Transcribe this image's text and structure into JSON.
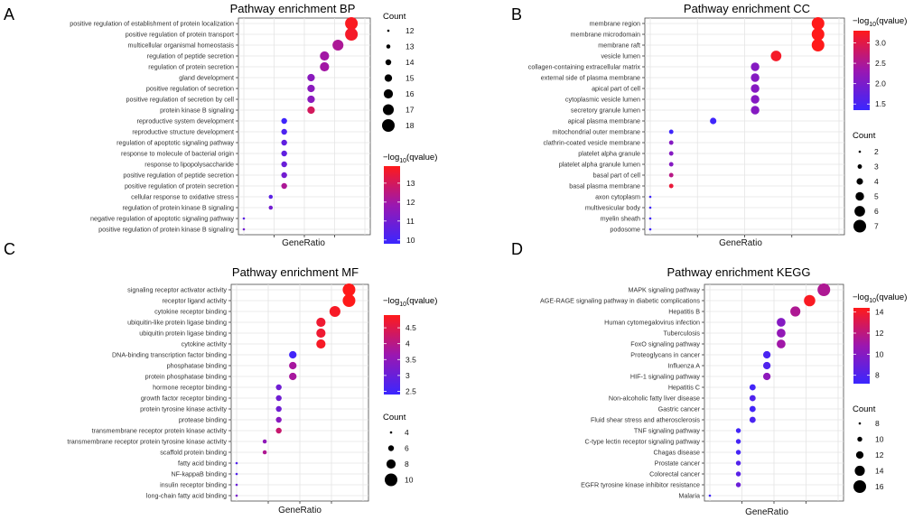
{
  "colors": {
    "low": "#3a26ff",
    "high": "#ff1a1a",
    "plot_bg": "#ffffff",
    "grid": "#e5e5e5",
    "border": "#4a4a4a"
  },
  "panels": [
    {
      "letter": "A",
      "title": "Pathway enrichment BP",
      "xlabel": "GeneRatio",
      "count_legend": {
        "title": "Count",
        "values": [
          12,
          13,
          14,
          15,
          16,
          17,
          18
        ]
      },
      "color_legend": {
        "title_prefix": "−log",
        "title_sub": "10",
        "title_suffix": "(qvalue)",
        "ticks": [
          10,
          11,
          12,
          13
        ],
        "min": 9.8,
        "max": 13.9
      },
      "chart_data": {
        "type": "scatter",
        "xlabel": "GeneRatio",
        "x_tick_labels": [
          "",
          "",
          ""
        ],
        "x_range": [
          0,
          9
        ],
        "terms": [
          "positive regulation of establishment of protein localization",
          "positive regulation of protein transport",
          "multicellular organismal homeostasis",
          "regulation of peptide secretion",
          "regulation of protein secretion",
          "gland development",
          "positive regulation of secretion",
          "positive regulation of secretion by cell",
          "protein kinase B signaling",
          "reproductive system development",
          "reproductive structure development",
          "regulation of apoptotic signaling pathway",
          "response to molecule of bacterial origin",
          "response to lipopolysaccharide",
          "positive regulation of peptide secretion",
          "positive regulation of protein secretion",
          "cellular response to oxidative stress",
          "regulation of protein kinase B signaling",
          "negative regulation of apoptotic signaling pathway",
          "positive regulation of protein kinase B signaling"
        ],
        "x": [
          8,
          8,
          7,
          6,
          6,
          5,
          5,
          5,
          5,
          3,
          3,
          3,
          3,
          3,
          3,
          3,
          2,
          2,
          0,
          0
        ],
        "count": [
          18,
          18,
          17,
          16,
          16,
          15,
          15,
          15,
          15,
          14,
          14,
          14,
          14,
          14,
          14,
          14,
          13,
          13,
          12,
          12
        ],
        "log10q": [
          13.8,
          13.7,
          12.2,
          12.0,
          12.0,
          11.5,
          11.5,
          11.5,
          13.0,
          9.9,
          10.2,
          10.6,
          10.6,
          10.8,
          11.0,
          12.2,
          10.5,
          11.0,
          10.5,
          11.0
        ]
      }
    },
    {
      "letter": "B",
      "title": "Pathway enrichment CC",
      "xlabel": "GeneRatio",
      "count_legend": {
        "title": "Count",
        "values": [
          2,
          3,
          4,
          5,
          6,
          7
        ]
      },
      "color_legend": {
        "title_prefix": "−log",
        "title_sub": "10",
        "title_suffix": "(qvalue)",
        "ticks": [
          1.5,
          2.0,
          2.5,
          3.0
        ],
        "min": 1.35,
        "max": 3.3
      },
      "chart_data": {
        "type": "scatter",
        "xlabel": "GeneRatio",
        "x_tick_labels": [
          "",
          "",
          ""
        ],
        "x_range": [
          0,
          9
        ],
        "terms": [
          "membrane region",
          "membrane microdomain",
          "membrane raft",
          "vesicle lumen",
          "collagen-containing extracellular matrix",
          "external side of plasma membrane",
          "apical part of cell",
          "cytoplasmic vesicle lumen",
          "secretory granule lumen",
          "apical plasma membrane",
          "mitochondrial outer membrane",
          "clathrin-coated vesicle membrane",
          "platelet alpha granule",
          "platelet alpha granule lumen",
          "basal part of cell",
          "basal plasma membrane",
          "axon cytoplasm",
          "multivesicular body",
          "myelin sheath",
          "podosome"
        ],
        "x": [
          8,
          8,
          8,
          6,
          5,
          5,
          5,
          5,
          5,
          3,
          1,
          1,
          1,
          1,
          1,
          1,
          0,
          0,
          0,
          0
        ],
        "count": [
          7,
          7,
          7,
          6,
          5,
          5,
          5,
          5,
          5,
          4,
          3,
          3,
          3,
          3,
          3,
          3,
          2,
          2,
          2,
          2
        ],
        "log10q": [
          3.3,
          3.3,
          3.3,
          3.2,
          2.1,
          2.1,
          2.1,
          2.1,
          2.1,
          1.4,
          1.4,
          2.1,
          2.1,
          2.1,
          2.6,
          3.1,
          1.4,
          1.4,
          1.4,
          1.4
        ]
      }
    },
    {
      "letter": "C",
      "title": "Pathway enrichment MF",
      "xlabel": "GeneRatio",
      "count_legend": {
        "title": "Count",
        "values": [
          4,
          6,
          8,
          10
        ]
      },
      "color_legend": {
        "title_prefix": "−log",
        "title_sub": "10",
        "title_suffix": "(qvalue)",
        "ticks": [
          2.5,
          3.0,
          3.5,
          4.0,
          4.5
        ],
        "min": 2.4,
        "max": 4.9
      },
      "chart_data": {
        "type": "scatter",
        "xlabel": "GeneRatio",
        "x_tick_labels": [
          "",
          "",
          ""
        ],
        "x_range": [
          0,
          9
        ],
        "terms": [
          "signaling receptor activator activity",
          "receptor ligand activity",
          "cytokine receptor binding",
          "ubiquitin-like protein ligase binding",
          "ubiquitin protein ligase binding",
          "cytokine activity",
          "DNA-binding transcription factor binding",
          "phosphatase binding",
          "protein phosphatase binding",
          "hormone receptor binding",
          "growth factor receptor binding",
          "protein tyrosine kinase activity",
          "protease binding",
          "transmembrane receptor protein kinase activity",
          "transmembrane receptor protein tyrosine kinase activity",
          "scaffold protein binding",
          "fatty acid binding",
          "NF-kappaB binding",
          "insulin receptor binding",
          "long-chain fatty acid binding"
        ],
        "x": [
          8,
          8,
          7,
          6,
          6,
          6,
          4,
          4,
          4,
          3,
          3,
          3,
          3,
          3,
          2,
          2,
          0,
          0,
          0,
          0
        ],
        "count": [
          10,
          10,
          9,
          8,
          8,
          8,
          7,
          7,
          7,
          6,
          6,
          6,
          6,
          6,
          5,
          5,
          4,
          4,
          4,
          4
        ],
        "log10q": [
          4.9,
          4.9,
          4.8,
          4.7,
          4.7,
          4.8,
          2.5,
          3.8,
          3.8,
          3.1,
          3.1,
          3.1,
          3.4,
          4.2,
          3.5,
          3.9,
          2.7,
          2.7,
          3.0,
          3.2
        ]
      }
    },
    {
      "letter": "D",
      "title": "Pathway enrichment KEGG",
      "xlabel": "GeneRatio",
      "count_legend": {
        "title": "Count",
        "values": [
          8,
          10,
          12,
          14,
          16
        ]
      },
      "color_legend": {
        "title_prefix": "−log",
        "title_sub": "10",
        "title_suffix": "(qvalue)",
        "ticks": [
          8,
          10,
          12,
          14
        ],
        "min": 7.2,
        "max": 14.4
      },
      "chart_data": {
        "type": "scatter",
        "xlabel": "GeneRatio",
        "x_tick_labels": [
          "",
          "",
          ""
        ],
        "x_range": [
          0,
          9
        ],
        "terms": [
          "MAPK signaling pathway",
          "AGE-RAGE signaling pathway in diabetic complications",
          "Hepatitis B",
          "Human cytomegalovirus infection",
          "Tuberculosis",
          "FoxO signaling pathway",
          "Proteoglycans in cancer",
          "Influenza A",
          "HIF-1 signaling pathway",
          "Hepatitis C",
          "Non-alcoholic fatty liver disease",
          "Gastric cancer",
          "Fluid shear stress and atherosclerosis",
          "TNF signaling pathway",
          "C-type lectin receptor signaling pathway",
          "Chagas disease",
          "Prostate cancer",
          "Colorectal cancer",
          "EGFR tyrosine kinase inhibitor resistance",
          "Malaria"
        ],
        "x": [
          8,
          7,
          6,
          5,
          5,
          5,
          4,
          4,
          4,
          3,
          3,
          3,
          3,
          2,
          2,
          2,
          2,
          2,
          2,
          0
        ],
        "count": [
          16,
          15,
          14,
          13,
          13,
          13,
          12,
          12,
          12,
          11,
          11,
          11,
          11,
          10,
          10,
          10,
          10,
          10,
          10,
          8
        ],
        "log10q": [
          11.5,
          14.2,
          11.5,
          10.0,
          10.5,
          11.0,
          7.8,
          8.0,
          10.3,
          7.5,
          8.0,
          7.5,
          7.8,
          7.5,
          7.6,
          7.6,
          8.1,
          8.3,
          9.0,
          7.4
        ]
      }
    }
  ]
}
